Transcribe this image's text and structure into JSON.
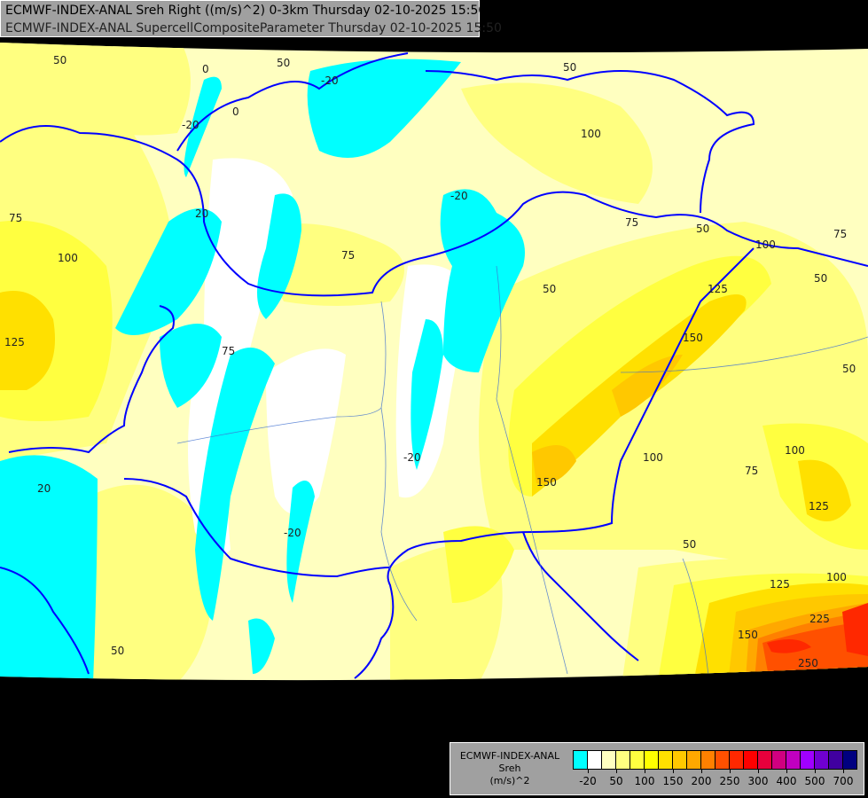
{
  "header": {
    "line1": "ECMWF-INDEX-ANAL Sreh Right ((m/s)^2) 0-3km Thursday 02-10-2025 15:50",
    "line2": "ECMWF-INDEX-ANAL SupercellCompositeParameter Thursday 02-10-2025 15:50"
  },
  "legend": {
    "model": "ECMWF-INDEX-ANAL",
    "parameter": "Sreh",
    "unit": "(m/s)^2",
    "colors": [
      "#00ffff",
      "#ffffff",
      "#ffffc0",
      "#ffff80",
      "#ffff40",
      "#ffff00",
      "#ffe000",
      "#ffc800",
      "#ffa800",
      "#ff8000",
      "#ff5000",
      "#ff2800",
      "#ff0000",
      "#e8003c",
      "#d00080",
      "#c000c0",
      "#a000ff",
      "#7000d0",
      "#4000a0",
      "#000080"
    ],
    "tick_labels": [
      "-20",
      "50",
      "100",
      "150",
      "200",
      "250",
      "300",
      "400",
      "500",
      "700"
    ]
  },
  "contour_labels": [
    "50",
    "0",
    "-20",
    "0",
    "50",
    "-20",
    "20",
    "75",
    "100",
    "125",
    "75",
    "75",
    "50",
    "150",
    "100",
    "125",
    "150",
    "50",
    "-20",
    "-20",
    "-20",
    "50",
    "100",
    "75",
    "50",
    "125",
    "100",
    "75",
    "50",
    "125",
    "225",
    "250",
    "150",
    "100",
    "20",
    "50",
    "75",
    "100",
    "50"
  ]
}
